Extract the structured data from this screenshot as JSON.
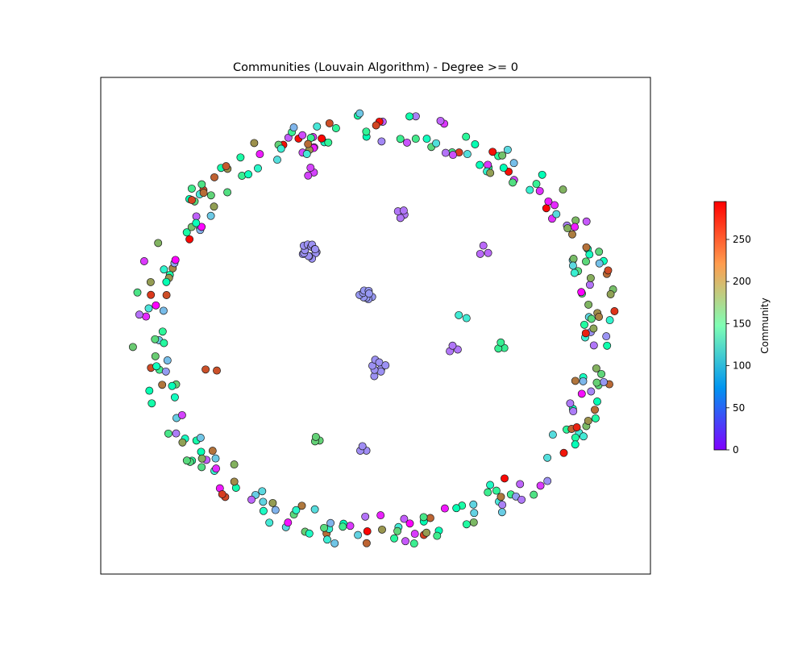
{
  "chart_data": {
    "type": "scatter",
    "title": "Communities (Louvain Algorithm) - Degree >= 0",
    "colorbar": {
      "label": "Community",
      "range": [
        0,
        295
      ],
      "ticks": [
        "0",
        "50",
        "100",
        "150",
        "200",
        "250"
      ],
      "tick_values": [
        0,
        50,
        100,
        150,
        200,
        250
      ],
      "colormap": "rainbow"
    },
    "axes": {
      "ticks_visible": false,
      "grid": false
    },
    "layout_ring": {
      "node_count": 300,
      "community_range": [
        0,
        295
      ]
    },
    "clusters": [
      {
        "community": 57,
        "node_count": 14,
        "x": -0.27,
        "y": 0.36
      },
      {
        "community": 60,
        "node_count": 9,
        "x": -0.04,
        "y": 0.16
      },
      {
        "community": 57,
        "node_count": 8,
        "x": 0.01,
        "y": -0.18
      },
      {
        "community": 45,
        "node_count": 4,
        "x": 0.11,
        "y": 0.53
      },
      {
        "community": 40,
        "node_count": 3,
        "x": 0.45,
        "y": 0.36
      },
      {
        "community": 25,
        "node_count": 3,
        "x": -0.27,
        "y": 0.72
      },
      {
        "community": 110,
        "node_count": 2,
        "x": 0.36,
        "y": 0.06
      },
      {
        "community": 45,
        "node_count": 3,
        "x": 0.32,
        "y": -0.09
      },
      {
        "community": 180,
        "node_count": 3,
        "x": 0.52,
        "y": -0.08
      },
      {
        "community": 265,
        "node_count": 2,
        "x": -0.68,
        "y": -0.19
      },
      {
        "community": 205,
        "node_count": 3,
        "x": -0.24,
        "y": -0.51
      },
      {
        "community": 55,
        "node_count": 3,
        "x": -0.05,
        "y": -0.55
      }
    ]
  }
}
